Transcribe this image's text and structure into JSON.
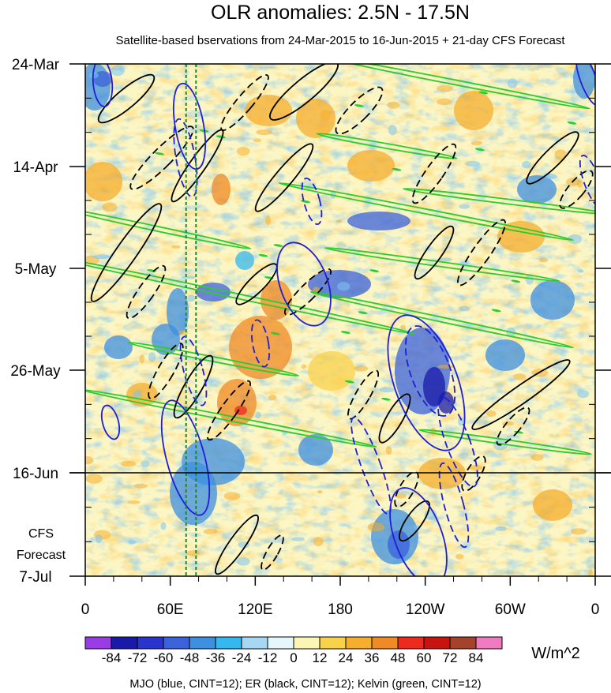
{
  "chart_data": {
    "type": "heatmap",
    "title": "OLR anomalies: 2.5N - 17.5N",
    "subtitle": "Satellite-based bservations from 24-Mar-2015 to 16-Jun-2015 + 21-day CFS Forecast",
    "y_tick_labels": [
      "24-Mar",
      "14-Apr",
      "5-May",
      "26-May",
      "16-Jun",
      "7-Jul"
    ],
    "forecast_label_line1": "CFS",
    "forecast_label_line2": "Forecast",
    "x_tick_labels": [
      "0",
      "60E",
      "120E",
      "180",
      "120W",
      "60W",
      "0"
    ],
    "x_range_deg": [
      0,
      360
    ],
    "observation_end": "16-Jun",
    "colorbar": {
      "levels": [
        "-84",
        "-72",
        "-60",
        "-48",
        "-36",
        "-24",
        "-12",
        "0",
        "12",
        "24",
        "36",
        "48",
        "60",
        "72",
        "84"
      ],
      "colors": [
        "#9a3ce6",
        "#1a1aa8",
        "#2834cc",
        "#3b62db",
        "#3d8fe0",
        "#35b8ee",
        "#a6d8f4",
        "#e6f7fb",
        "#fcf6b4",
        "#f9d24c",
        "#f5ae2e",
        "#f08a24",
        "#ec2a1e",
        "#c8140e",
        "#a4422c",
        "#f07ac0"
      ],
      "units": "W/m^2"
    },
    "footer": "MJO (blue, CINT=12); ER (black, CINT=12); Kelvin (green, CINT=12)",
    "series": [
      {
        "name": "MJO",
        "color": "#1f1fd6"
      },
      {
        "name": "ER",
        "color": "#000000"
      },
      {
        "name": "Kelvin",
        "color": "#2ecc2e"
      }
    ],
    "reference_longitudes_deg": [
      70,
      78
    ]
  }
}
